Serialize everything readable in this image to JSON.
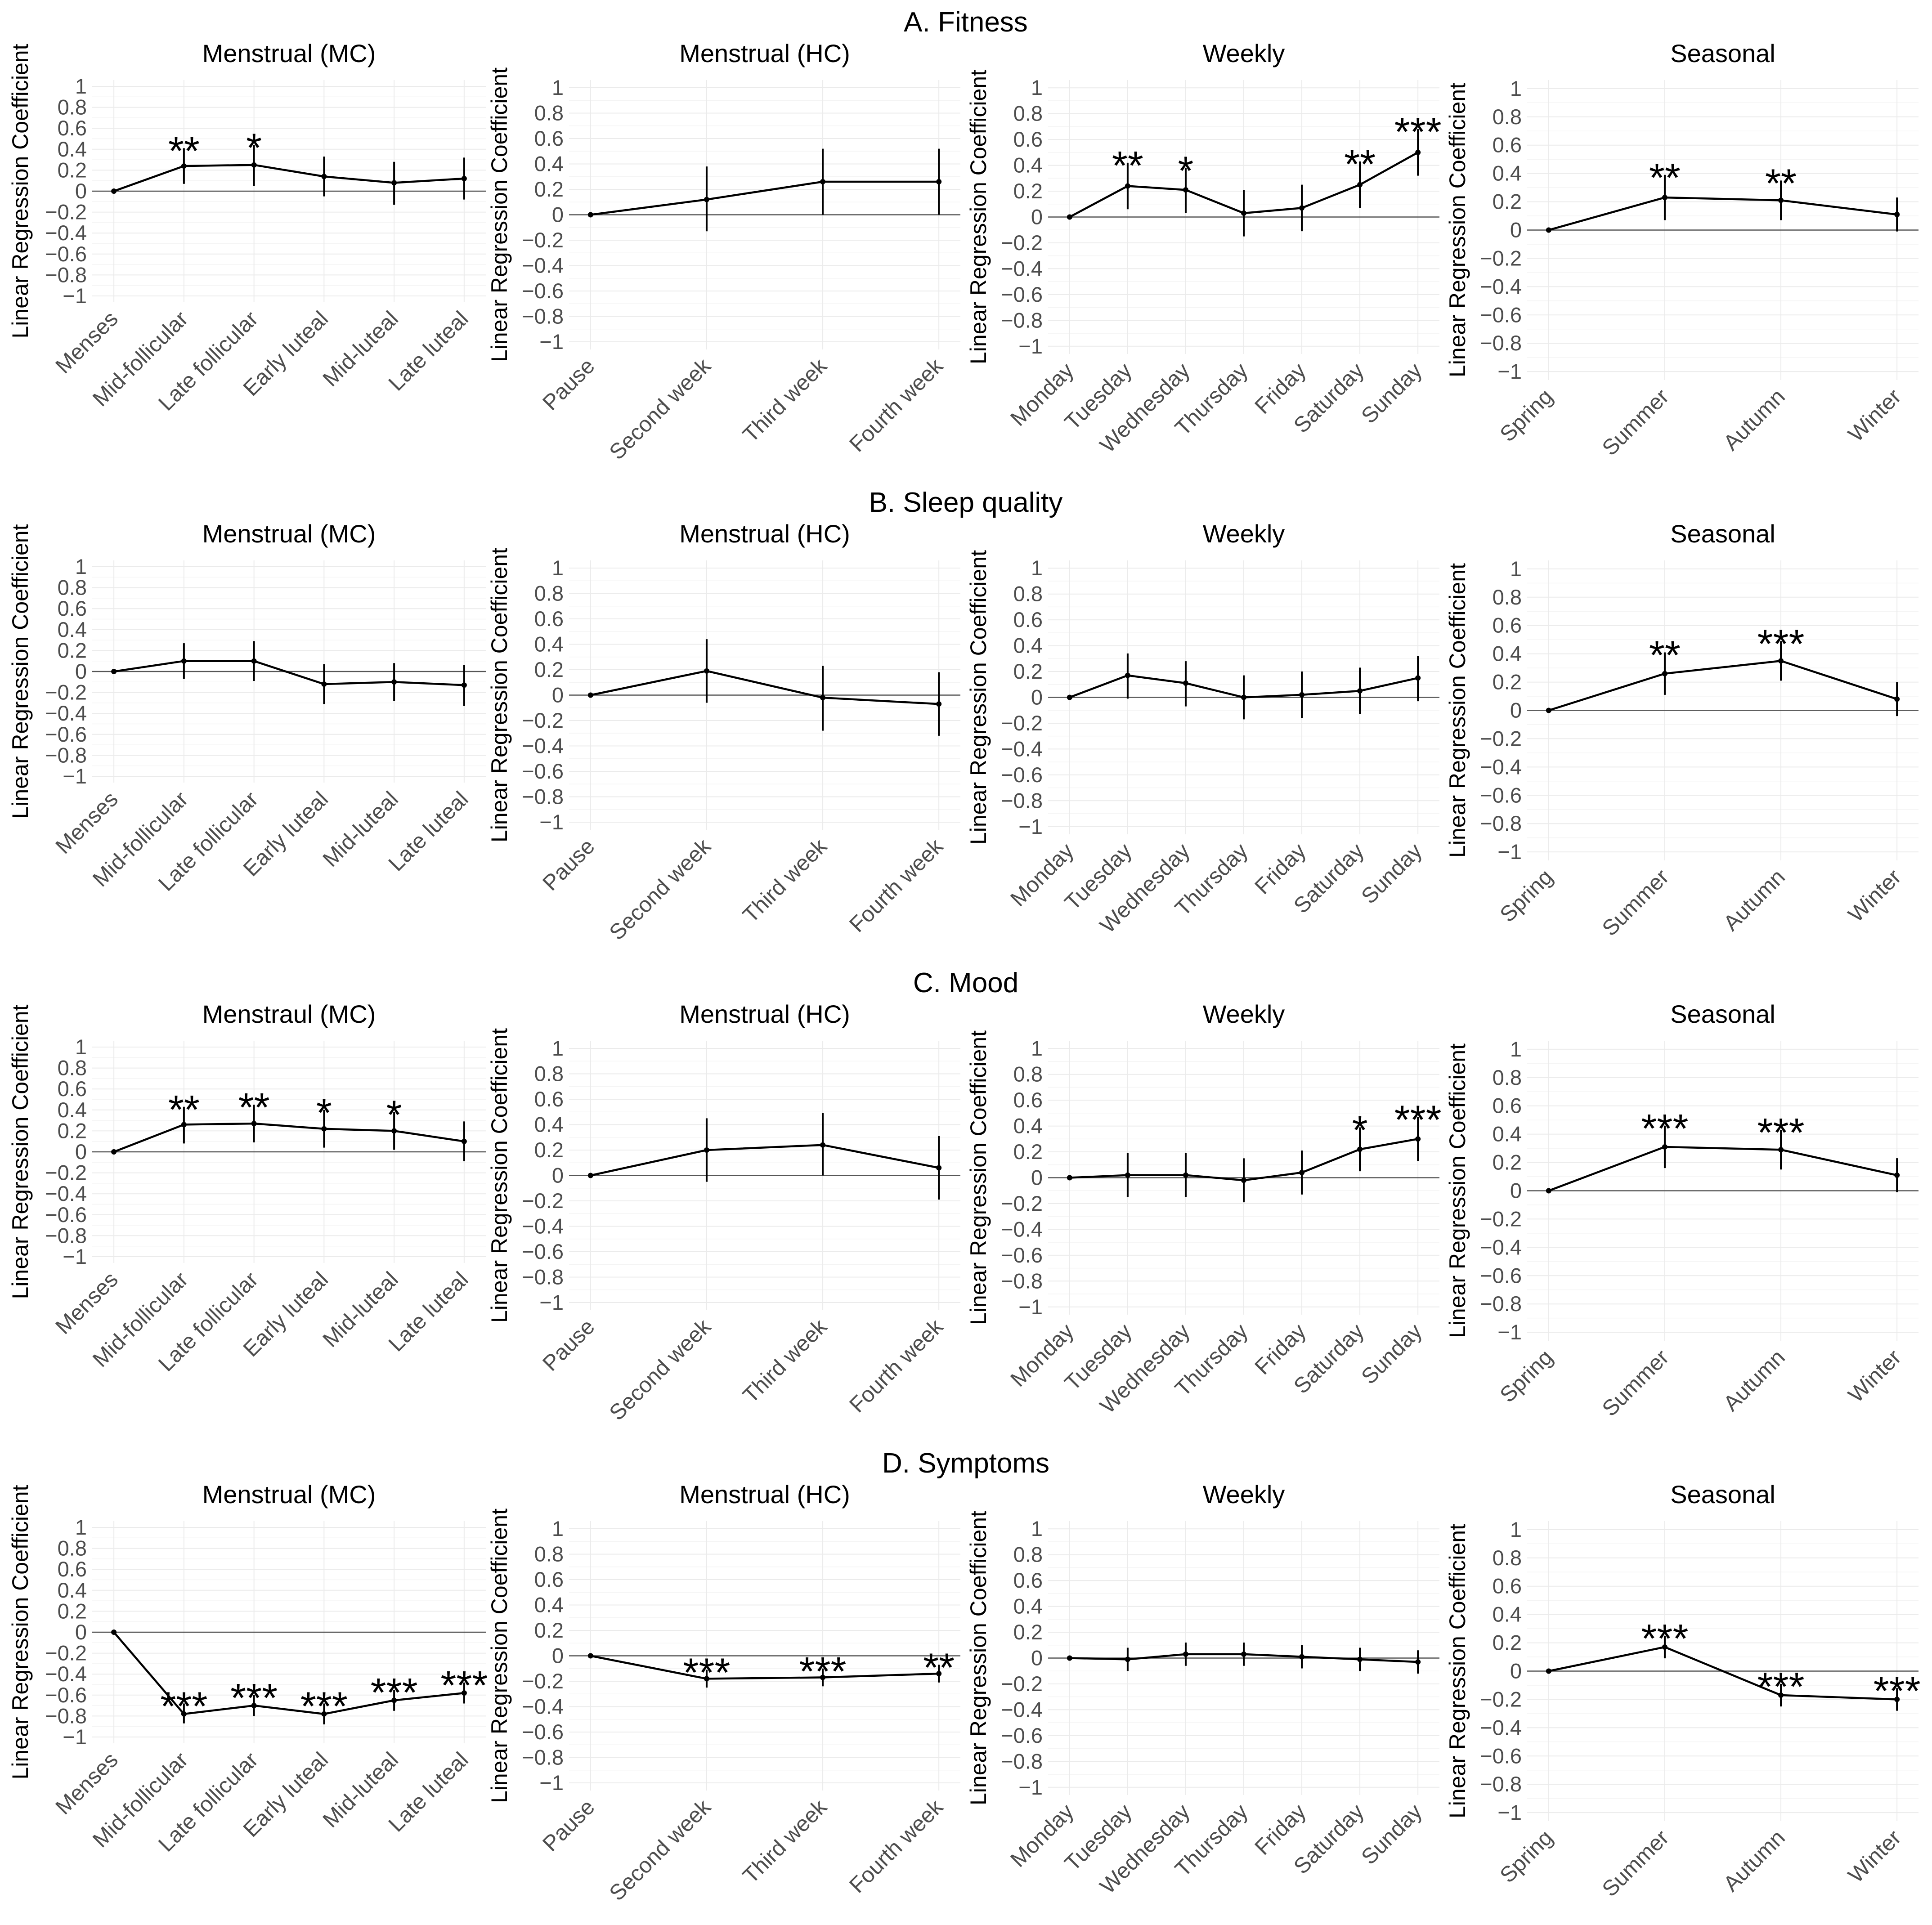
{
  "chart_data": [
    {
      "row_title": "A. Fitness",
      "panels": [
        {
          "type": "line",
          "title": "Menstrual (MC)",
          "ylabel": "Linear Regression Coefficient",
          "ylim": [
            -1,
            1
          ],
          "categories": [
            "Menses",
            "Mid-follicular",
            "Late follicular",
            "Early luteal",
            "Mid-luteal",
            "Late luteal"
          ],
          "values": [
            0,
            0.24,
            0.25,
            0.14,
            0.08,
            0.12
          ],
          "lower": [
            0,
            0.07,
            0.05,
            -0.05,
            -0.13,
            -0.08
          ],
          "upper": [
            0,
            0.41,
            0.44,
            0.33,
            0.28,
            0.32
          ],
          "sig": [
            "",
            "**",
            "*",
            "",
            "",
            ""
          ]
        },
        {
          "type": "line",
          "title": "Menstrual (HC)",
          "ylabel": "Linear Regression Coefficient",
          "ylim": [
            -1,
            1
          ],
          "categories": [
            "Pause",
            "Second week",
            "Third week",
            "Fourth week"
          ],
          "values": [
            0,
            0.12,
            0.26,
            0.26
          ],
          "lower": [
            0,
            -0.13,
            0,
            0
          ],
          "upper": [
            0,
            0.38,
            0.52,
            0.52
          ],
          "sig": [
            "",
            "",
            "",
            ""
          ]
        },
        {
          "type": "line",
          "title": "Weekly",
          "ylabel": "Linear Regression Coefficient",
          "ylim": [
            -1,
            1
          ],
          "categories": [
            "Monday",
            "Tuesday",
            "Wednesday",
            "Thursday",
            "Friday",
            "Saturday",
            "Sunday"
          ],
          "values": [
            0,
            0.24,
            0.21,
            0.03,
            0.07,
            0.25,
            0.5
          ],
          "lower": [
            0,
            0.06,
            0.03,
            -0.15,
            -0.11,
            0.07,
            0.32
          ],
          "upper": [
            0,
            0.42,
            0.38,
            0.21,
            0.25,
            0.43,
            0.68
          ],
          "sig": [
            "",
            "**",
            "*",
            "",
            "",
            "**",
            "***"
          ]
        },
        {
          "type": "line",
          "title": "Seasonal",
          "ylabel": "Linear Regression Coefficient",
          "ylim": [
            -1,
            1
          ],
          "categories": [
            "Spring",
            "Summer",
            "Autumn",
            "Winter"
          ],
          "values": [
            0,
            0.23,
            0.21,
            0.11
          ],
          "lower": [
            0,
            0.07,
            0.07,
            -0.01
          ],
          "upper": [
            0,
            0.39,
            0.35,
            0.23
          ],
          "sig": [
            "",
            "**",
            "**",
            ""
          ]
        }
      ]
    },
    {
      "row_title": "B. Sleep quality",
      "panels": [
        {
          "type": "line",
          "title": "Menstrual (MC)",
          "ylabel": "Linear Regression Coefficient",
          "ylim": [
            -1,
            1
          ],
          "categories": [
            "Menses",
            "Mid-follicular",
            "Late follicular",
            "Early luteal",
            "Mid-luteal",
            "Late luteal"
          ],
          "values": [
            0,
            0.1,
            0.1,
            -0.12,
            -0.1,
            -0.13
          ],
          "lower": [
            0,
            -0.07,
            -0.09,
            -0.31,
            -0.28,
            -0.33
          ],
          "upper": [
            0,
            0.27,
            0.29,
            0.07,
            0.08,
            0.06
          ],
          "sig": [
            "",
            "",
            "",
            "",
            "",
            ""
          ]
        },
        {
          "type": "line",
          "title": "Menstrual (HC)",
          "ylabel": "Linear Regression Coefficient",
          "ylim": [
            -1,
            1
          ],
          "categories": [
            "Pause",
            "Second week",
            "Third week",
            "Fourth week"
          ],
          "values": [
            0,
            0.19,
            -0.02,
            -0.07
          ],
          "lower": [
            0,
            -0.06,
            -0.28,
            -0.32
          ],
          "upper": [
            0,
            0.44,
            0.23,
            0.18
          ],
          "sig": [
            "",
            "",
            "",
            ""
          ]
        },
        {
          "type": "line",
          "title": "Weekly",
          "ylabel": "Linear Regression Coefficient",
          "ylim": [
            -1,
            1
          ],
          "categories": [
            "Monday",
            "Tuesday",
            "Wednesday",
            "Thursday",
            "Friday",
            "Saturday",
            "Sunday"
          ],
          "values": [
            0,
            0.17,
            0.11,
            0,
            0.02,
            0.05,
            0.15
          ],
          "lower": [
            0,
            -0.01,
            -0.07,
            -0.17,
            -0.16,
            -0.13,
            -0.03
          ],
          "upper": [
            0,
            0.34,
            0.28,
            0.17,
            0.2,
            0.23,
            0.32
          ],
          "sig": [
            "",
            "",
            "",
            "",
            "",
            "",
            ""
          ]
        },
        {
          "type": "line",
          "title": "Seasonal",
          "ylabel": "Linear Regression Coefficient",
          "ylim": [
            -1,
            1
          ],
          "categories": [
            "Spring",
            "Summer",
            "Autumn",
            "Winter"
          ],
          "values": [
            0,
            0.26,
            0.35,
            0.08
          ],
          "lower": [
            0,
            0.11,
            0.21,
            -0.04
          ],
          "upper": [
            0,
            0.41,
            0.49,
            0.2
          ],
          "sig": [
            "",
            "**",
            "***",
            ""
          ]
        }
      ]
    },
    {
      "row_title": "C. Mood",
      "panels": [
        {
          "type": "line",
          "title": "Menstraul (MC)",
          "ylabel": "Linear Regression Coefficient",
          "ylim": [
            -1,
            1
          ],
          "categories": [
            "Menses",
            "Mid-follicular",
            "Late follicular",
            "Early luteal",
            "Mid-luteal",
            "Late luteal"
          ],
          "values": [
            0,
            0.26,
            0.27,
            0.22,
            0.2,
            0.1
          ],
          "lower": [
            0,
            0.08,
            0.09,
            0.04,
            0.02,
            -0.09
          ],
          "upper": [
            0,
            0.43,
            0.45,
            0.4,
            0.38,
            0.29
          ],
          "sig": [
            "",
            "**",
            "**",
            "*",
            "*",
            ""
          ]
        },
        {
          "type": "line",
          "title": "Menstrual (HC)",
          "ylabel": "Linear Regression Coefficient",
          "ylim": [
            -1,
            1
          ],
          "categories": [
            "Pause",
            "Second week",
            "Third week",
            "Fourth week"
          ],
          "values": [
            0,
            0.2,
            0.24,
            0.06
          ],
          "lower": [
            0,
            -0.05,
            0,
            -0.19
          ],
          "upper": [
            0,
            0.45,
            0.49,
            0.31
          ],
          "sig": [
            "",
            "",
            "",
            ""
          ]
        },
        {
          "type": "line",
          "title": "Weekly",
          "ylabel": "Linear Regression Coefficient",
          "ylim": [
            -1,
            1
          ],
          "categories": [
            "Monday",
            "Tuesday",
            "Wednesday",
            "Thursday",
            "Friday",
            "Saturday",
            "Sunday"
          ],
          "values": [
            0,
            0.02,
            0.02,
            -0.02,
            0.04,
            0.22,
            0.3
          ],
          "lower": [
            0,
            -0.15,
            -0.15,
            -0.19,
            -0.13,
            0.05,
            0.13
          ],
          "upper": [
            0,
            0.19,
            0.19,
            0.15,
            0.21,
            0.39,
            0.47
          ],
          "sig": [
            "",
            "",
            "",
            "",
            "",
            "*",
            "***"
          ]
        },
        {
          "type": "line",
          "title": "Seasonal",
          "ylabel": "Linear Regression Coefficient",
          "ylim": [
            -1,
            1
          ],
          "categories": [
            "Spring",
            "Summer",
            "Autumn",
            "Winter"
          ],
          "values": [
            0,
            0.31,
            0.29,
            0.11
          ],
          "lower": [
            0,
            0.16,
            0.15,
            -0.01
          ],
          "upper": [
            0,
            0.46,
            0.43,
            0.23
          ],
          "sig": [
            "",
            "***",
            "***",
            ""
          ]
        }
      ]
    },
    {
      "row_title": "D. Symptoms",
      "panels": [
        {
          "type": "line",
          "title": "Menstrual (MC)",
          "ylabel": "Linear Regression Coefficient",
          "ylim": [
            -1,
            1
          ],
          "categories": [
            "Menses",
            "Mid-follicular",
            "Late follicular",
            "Early luteal",
            "Mid-luteal",
            "Late luteal"
          ],
          "values": [
            0,
            -0.78,
            -0.7,
            -0.78,
            -0.65,
            -0.58
          ],
          "lower": [
            0,
            -0.87,
            -0.8,
            -0.88,
            -0.75,
            -0.68
          ],
          "upper": [
            0,
            -0.68,
            -0.6,
            -0.68,
            -0.55,
            -0.48
          ],
          "sig": [
            "",
            "***",
            "***",
            "***",
            "***",
            "***"
          ]
        },
        {
          "type": "line",
          "title": "Menstrual (HC)",
          "ylabel": "Linear Regression Coefficient",
          "ylim": [
            -1,
            1
          ],
          "categories": [
            "Pause",
            "Second week",
            "Third week",
            "Fourth week"
          ],
          "values": [
            0,
            -0.18,
            -0.17,
            -0.14
          ],
          "lower": [
            0,
            -0.25,
            -0.24,
            -0.21
          ],
          "upper": [
            0,
            -0.11,
            -0.1,
            -0.07
          ],
          "sig": [
            "",
            "***",
            "***",
            "**"
          ]
        },
        {
          "type": "line",
          "title": "Weekly",
          "ylabel": "Linear Regression Coefficient",
          "ylim": [
            -1,
            1
          ],
          "categories": [
            "Monday",
            "Tuesday",
            "Wednesday",
            "Thursday",
            "Friday",
            "Saturday",
            "Sunday"
          ],
          "values": [
            0,
            -0.01,
            0.03,
            0.03,
            0.01,
            -0.01,
            -0.03
          ],
          "lower": [
            0,
            -0.1,
            -0.06,
            -0.06,
            -0.08,
            -0.1,
            -0.12
          ],
          "upper": [
            0,
            0.08,
            0.12,
            0.12,
            0.1,
            0.08,
            0.06
          ],
          "sig": [
            "",
            "",
            "",
            "",
            "",
            "",
            ""
          ]
        },
        {
          "type": "line",
          "title": "Seasonal",
          "ylabel": "Linear Regression Coefficient",
          "ylim": [
            -1,
            1
          ],
          "categories": [
            "Spring",
            "Summer",
            "Autumn",
            "Winter"
          ],
          "values": [
            0,
            0.17,
            -0.17,
            -0.2
          ],
          "lower": [
            0,
            0.09,
            -0.25,
            -0.28
          ],
          "upper": [
            0,
            0.25,
            -0.09,
            -0.12
          ],
          "sig": [
            "",
            "***",
            "***",
            "***"
          ]
        }
      ]
    }
  ]
}
